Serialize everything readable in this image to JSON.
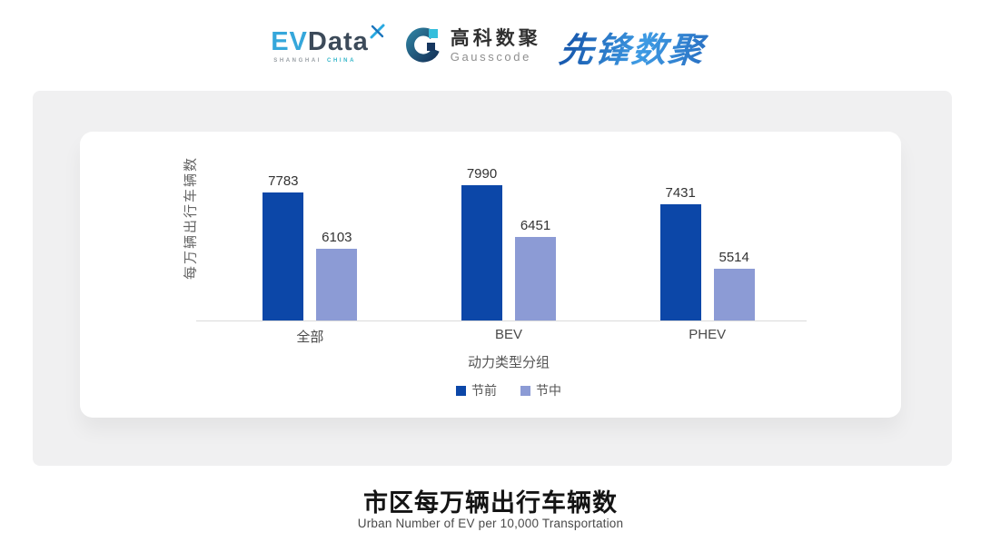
{
  "header": {
    "evdata_logo": {
      "ev": "EV",
      "data": "Data",
      "sub_shanghai": "SHANGHAI",
      "sub_china": "CHINA"
    },
    "gausscode_logo": {
      "cn": "高科数聚",
      "en": "Gausscode"
    },
    "xianfeng_logo": "先锋数聚"
  },
  "chart_data": {
    "type": "bar",
    "title": "市区每万辆出行车辆数",
    "subtitle": "Urban Number of EV per 10,000 Transportation",
    "categories": [
      "全部",
      "BEV",
      "PHEV"
    ],
    "series": [
      {
        "name": "节前",
        "color": "#0C47A8",
        "values": [
          7783,
          7990,
          7431
        ]
      },
      {
        "name": "节中",
        "color": "#8C9BD5",
        "values": [
          6103,
          6451,
          5514
        ]
      }
    ],
    "xlabel": "动力类型分组",
    "ylabel": "每万辆出行车辆数",
    "ylim": [
      4000,
      8500
    ],
    "grid": false,
    "value_labels": true,
    "legend_position": "bottom"
  },
  "colors": {
    "panel_bg": "#F0F0F1",
    "card_bg": "#FFFFFF",
    "axis_line": "#DBDBDB",
    "series_pre": "#0C47A8",
    "series_mid": "#8C9BD5"
  }
}
